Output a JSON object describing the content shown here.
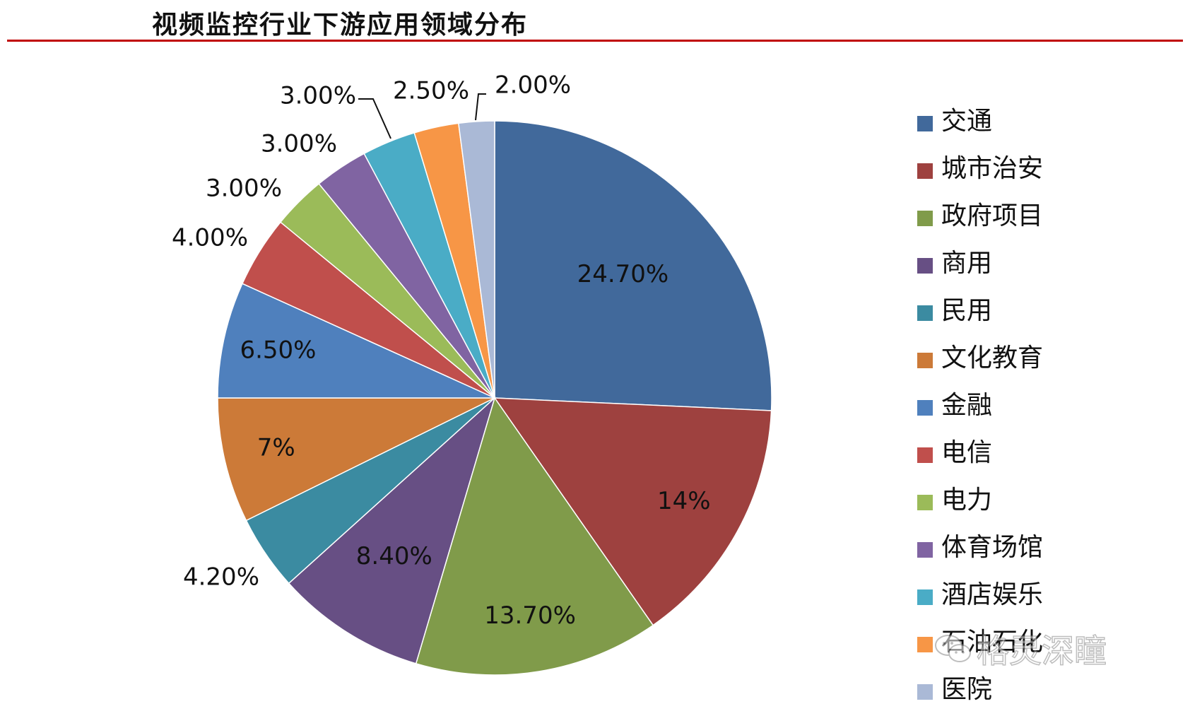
{
  "title": "视频监控行业下游应用领域分布",
  "chart_data": {
    "type": "pie",
    "start_angle_deg": 0,
    "direction": "clockwise",
    "legend_position": "right",
    "slices": [
      {
        "label": "交通",
        "value": 24.7,
        "display": "24.70%",
        "color": "#41699b",
        "label_placement": "inside"
      },
      {
        "label": "城市治安",
        "value": 14,
        "display": "14%",
        "color": "#9e413f",
        "label_placement": "inside"
      },
      {
        "label": "政府项目",
        "value": 13.7,
        "display": "13.70%",
        "color": "#809b4a",
        "label_placement": "inside"
      },
      {
        "label": "商用",
        "value": 8.4,
        "display": "8.40%",
        "color": "#674f84",
        "label_placement": "inside"
      },
      {
        "label": "民用",
        "value": 4.2,
        "display": "4.20%",
        "color": "#3b8ba1",
        "label_placement": "outside"
      },
      {
        "label": "文化教育",
        "value": 7,
        "display": "7%",
        "color": "#cc7a38",
        "label_placement": "inside"
      },
      {
        "label": "金融",
        "value": 6.5,
        "display": "6.50%",
        "color": "#4f80bd",
        "label_placement": "inside"
      },
      {
        "label": "电信",
        "value": 4.0,
        "display": "4.00%",
        "color": "#c04f4c",
        "label_placement": "outside"
      },
      {
        "label": "电力",
        "value": 3.0,
        "display": "3.00%",
        "color": "#9bbb59",
        "label_placement": "outside"
      },
      {
        "label": "体育场馆",
        "value": 3.0,
        "display": "3.00%",
        "color": "#8064a2",
        "label_placement": "outside"
      },
      {
        "label": "酒店娱乐",
        "value": 3.0,
        "display": "3.00%",
        "color": "#4aacc6",
        "label_placement": "outside"
      },
      {
        "label": "石油石化",
        "value": 2.5,
        "display": "2.50%",
        "color": "#f79646",
        "label_placement": "outside"
      },
      {
        "label": "医院",
        "value": 2.0,
        "display": "2.00%",
        "color": "#aab9d6",
        "label_placement": "outside"
      }
    ]
  },
  "watermark": {
    "text": "格灵深瞳",
    "icon": "wechat-icon"
  }
}
